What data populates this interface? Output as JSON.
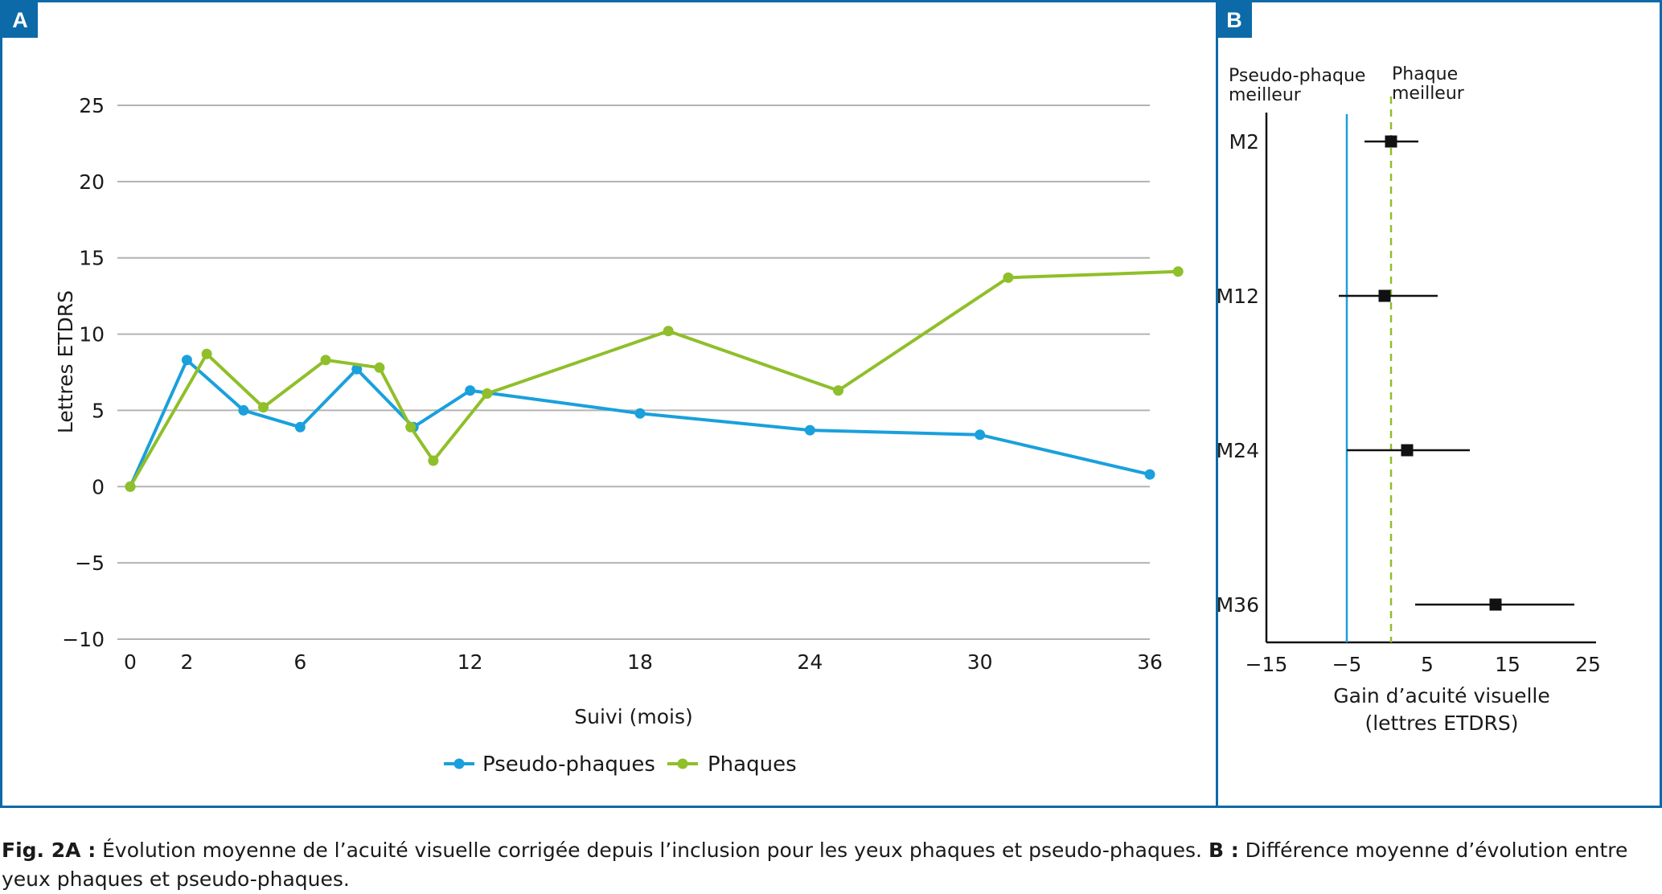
{
  "panels": {
    "a_label": "A",
    "b_label": "B"
  },
  "colors": {
    "frame": "#0d6aa8",
    "pseudo": "#1aa0dc",
    "phaques": "#8fbf2a",
    "grid": "#b3b3b3",
    "marker": "#111111"
  },
  "chart_data": [
    {
      "type": "line",
      "ylabel": "Lettres ETDRS",
      "xlabel": "Suivi (mois)",
      "xlim": [
        0,
        36
      ],
      "ylim": [
        -10,
        25
      ],
      "yticks": [
        25,
        20,
        15,
        10,
        5,
        0,
        -5,
        -10
      ],
      "ytick_labels": [
        "25",
        "20",
        "15",
        "10",
        "5",
        "0",
        "−5",
        "−10"
      ],
      "xticks": [
        0,
        2,
        6,
        12,
        18,
        24,
        30,
        36
      ],
      "grid": true,
      "legend": "bottom",
      "series": [
        {
          "name": "Pseudo-phaques",
          "color": "#1aa0dc",
          "x": [
            0,
            2,
            4,
            6,
            8,
            10,
            12,
            18,
            24,
            30,
            36
          ],
          "y": [
            0,
            8.3,
            5.0,
            3.9,
            7.7,
            3.9,
            6.3,
            4.8,
            3.7,
            3.4,
            0.8
          ]
        },
        {
          "name": "Phaques",
          "color": "#8fbf2a",
          "x": [
            0,
            2.7,
            4.7,
            6.9,
            8.8,
            9.9,
            10.7,
            12.6,
            19,
            25,
            31,
            37
          ],
          "y": [
            0,
            8.7,
            5.2,
            8.3,
            7.8,
            3.9,
            1.7,
            6.1,
            10.2,
            6.3,
            13.7,
            14.1
          ]
        }
      ]
    },
    {
      "type": "scatter",
      "subtype": "forest",
      "xlabel_line1": "Gain d’acuité visuelle",
      "xlabel_line2": "(lettres ETDRS)",
      "xlim": [
        -15,
        25
      ],
      "xticks": [
        -15,
        -5,
        5,
        15,
        25
      ],
      "xtick_labels": [
        "−15",
        "−5",
        "5",
        "15",
        "25"
      ],
      "header_left_line1": "Pseudo-phaque",
      "header_left_line2": "meilleur",
      "header_right_line1": "Phaque",
      "header_right_line2": "meilleur",
      "reference_solid_x": -5,
      "reference_dashed_x": 0.5,
      "rows": [
        {
          "label": "M2",
          "estimate": 0.5,
          "ci_low": -2.8,
          "ci_high": 3.9
        },
        {
          "label": "M12",
          "estimate": -0.3,
          "ci_low": -6.0,
          "ci_high": 6.3
        },
        {
          "label": "M24",
          "estimate": 2.5,
          "ci_low": -5.0,
          "ci_high": 10.3
        },
        {
          "label": "M36",
          "estimate": 13.5,
          "ci_low": 3.5,
          "ci_high": 23.3
        }
      ]
    }
  ],
  "caption": {
    "fig_label": "Fig. 2A :",
    "part_a_text": " Évolution moyenne de l’acuité visuelle corrigée depuis l’inclusion pour les yeux phaques et pseudo-phaques. ",
    "b_label": "B :",
    "part_b_text": " Différence moyenne d’évolution entre yeux phaques et pseudo-phaques."
  }
}
